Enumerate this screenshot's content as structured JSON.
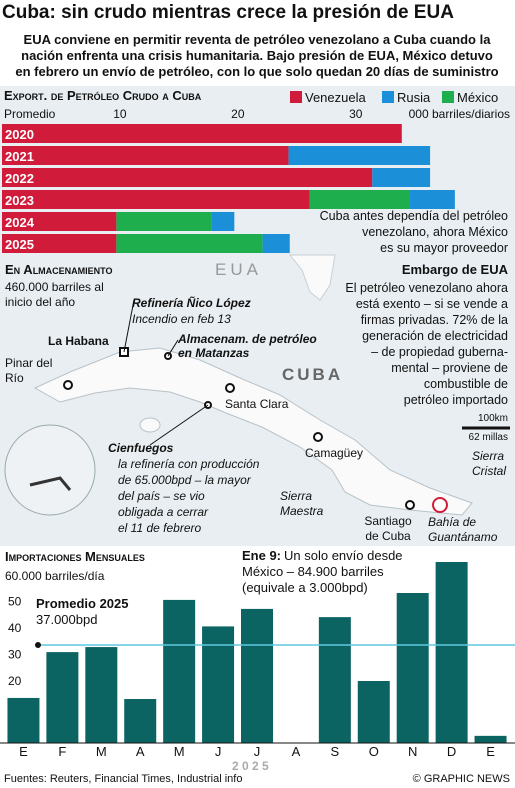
{
  "title": "Cuba: sin crudo mientras crece la presión de EUA",
  "subtitle": [
    "EUA conviene en permitir reventa de petróleo venezolano a Cuba cuando la",
    "nación enfrenta una crisis humanitaria. Bajo presión de EUA, México detuvo",
    "en febrero un envío de petróleo, con lo que solo quedan 20 días de suministro"
  ],
  "chart_data": [
    {
      "type": "hbar",
      "title": "Export. de Petróleo Crudo a Cuba",
      "x_label": "Promedio",
      "unit": "000 barriles/diarios",
      "categories": [
        "2020",
        "2021",
        "2022",
        "2023",
        "2024",
        "2025"
      ],
      "series": [
        {
          "name": "Venezuela",
          "color": "#d01c3a",
          "values": [
            33.9,
            24.3,
            31.4,
            26.1,
            9.7,
            9.7
          ]
        },
        {
          "name": "Rusia",
          "color": "#1b8fd8",
          "values": [
            0,
            12,
            4.9,
            3.8,
            1.9,
            2.3
          ]
        },
        {
          "name": "México",
          "color": "#1fae4e",
          "values": [
            0,
            0,
            0,
            8.5,
            8.1,
            12.4
          ]
        }
      ],
      "xlim": [
        0,
        43.5
      ],
      "xticks": [
        10,
        20,
        30
      ],
      "annotation": [
        "Cuba antes dependía del petróleo",
        "venezolano, ahora México",
        "es su mayor proveedor"
      ]
    },
    {
      "type": "bar",
      "title": "Importaciones Mensuales",
      "y_label": "60.000 barriles/día",
      "year": "2 0 2 5",
      "color": "#0c6462",
      "categories": [
        "E",
        "F",
        "M",
        "A",
        "M",
        "J",
        "J",
        "A",
        "S",
        "O",
        "N",
        "D",
        "E"
      ],
      "values": [
        17,
        34.3,
        36.2,
        16.6,
        54,
        44,
        50.6,
        0,
        47.5,
        23.4,
        56.6,
        68.3,
        2.7
      ],
      "ylim": [
        0,
        70
      ],
      "yticks": [
        20,
        30,
        40,
        50
      ],
      "average": {
        "label": "Promedio 2025",
        "value": 37,
        "value_label": "37.000bpd"
      },
      "annotation": {
        "head": "Ene 9:",
        "lines": [
          "Un solo envío desde",
          "México – 84.900 barriles",
          "(equivale a 3.000bpd)"
        ]
      }
    }
  ],
  "map": {
    "storage_title": "En Almacenamiento",
    "storage": [
      "460.000 barriles al",
      "inicio del año"
    ],
    "usa": "EUA",
    "cuba": "CUBA",
    "nico_title": "Refinería Ñico López",
    "nico": "Incendio en feb 13",
    "matanzas": [
      "Almacenam. de petróleo",
      "en Matanzas"
    ],
    "habana": "La Habana",
    "pinar": [
      "Pinar del",
      "Río"
    ],
    "santa_clara": "Santa Clara",
    "camaguey": "Camagüey",
    "cienfuegos_title": "Cienfuegos",
    "cienfuegos": [
      "la refinería con producción",
      "de 65.000bpd – la mayor",
      "del país – se vio",
      "obligada a cerrar",
      "el 11 de febrero"
    ],
    "maestra": [
      "Sierra",
      "Maestra"
    ],
    "santiago": [
      "Santiago",
      "de Cuba"
    ],
    "guantanamo": [
      "Bahía de",
      "Guantánamo"
    ],
    "cristal": [
      "Sierra",
      "Cristal"
    ],
    "embargo_title": "Embargo de EUA",
    "embargo": [
      "El petróleo venezolano ahora",
      "está exento – si se vende a",
      "firmas privadas. 72% de la",
      "generación de electricidad",
      "– de propiedad guberna-",
      "mental – proviene de",
      "combustible de",
      "petróleo importado"
    ],
    "scale_km": "100km",
    "scale_mi": "62 millas"
  },
  "footer": {
    "source": "Fuentes: Reuters, Financial Times, Industrial info",
    "credit": "© GRAPHIC NEWS"
  }
}
